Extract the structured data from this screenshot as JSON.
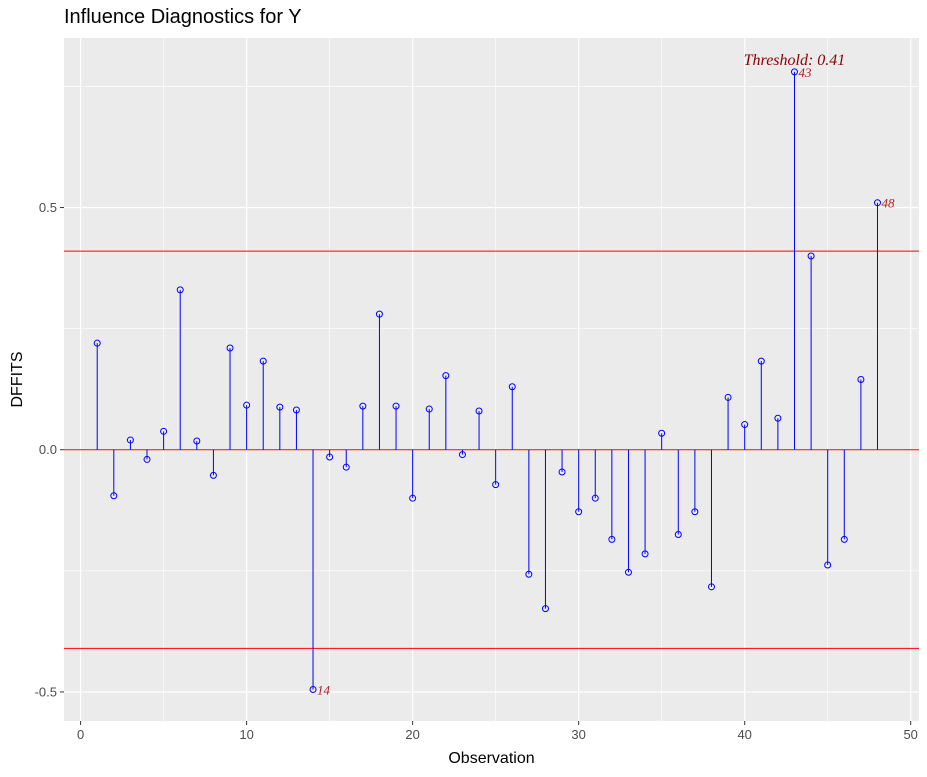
{
  "chart_data": {
    "type": "scatter",
    "title": "Influence Diagnostics for Y",
    "xlabel": "Observation",
    "ylabel": "DFFITS",
    "xlim": [
      -1,
      50.5
    ],
    "ylim": [
      -0.56,
      0.85
    ],
    "x_ticks": [
      0,
      10,
      20,
      30,
      40,
      50
    ],
    "y_ticks": [
      -0.5,
      0.0,
      0.5
    ],
    "y_tick_labels": [
      "-0.5",
      "0.0",
      "0.5"
    ],
    "threshold": 0.41,
    "threshold_label": "Threshold: 0.41",
    "grid": true,
    "colors": {
      "stem": "#0000ff",
      "threshold_line": "#ff0000",
      "label": "#b22222",
      "panel": "#ebebeb"
    },
    "x": [
      1,
      2,
      3,
      4,
      5,
      6,
      7,
      8,
      9,
      10,
      11,
      12,
      13,
      14,
      15,
      16,
      17,
      18,
      19,
      20,
      21,
      22,
      23,
      24,
      25,
      26,
      27,
      28,
      29,
      30,
      31,
      32,
      33,
      34,
      35,
      36,
      37,
      38,
      39,
      40,
      41,
      42,
      43,
      44,
      45,
      46,
      47,
      48
    ],
    "values": [
      0.22,
      -0.095,
      0.02,
      -0.02,
      0.038,
      0.33,
      0.018,
      -0.053,
      0.21,
      0.092,
      0.183,
      0.088,
      0.082,
      -0.495,
      -0.015,
      -0.036,
      0.09,
      0.28,
      0.09,
      -0.1,
      0.084,
      0.153,
      -0.01,
      0.08,
      -0.072,
      0.13,
      -0.257,
      -0.328,
      -0.046,
      -0.128,
      -0.1,
      -0.185,
      -0.253,
      -0.215,
      0.034,
      -0.175,
      -0.128,
      -0.283,
      0.108,
      0.052,
      0.183,
      0.065,
      0.78,
      0.4,
      -0.238,
      -0.185,
      0.145,
      0.51
    ],
    "labeled_points": [
      {
        "x": 14,
        "label": "14"
      },
      {
        "x": 43,
        "label": "43"
      },
      {
        "x": 48,
        "label": "48"
      }
    ]
  }
}
